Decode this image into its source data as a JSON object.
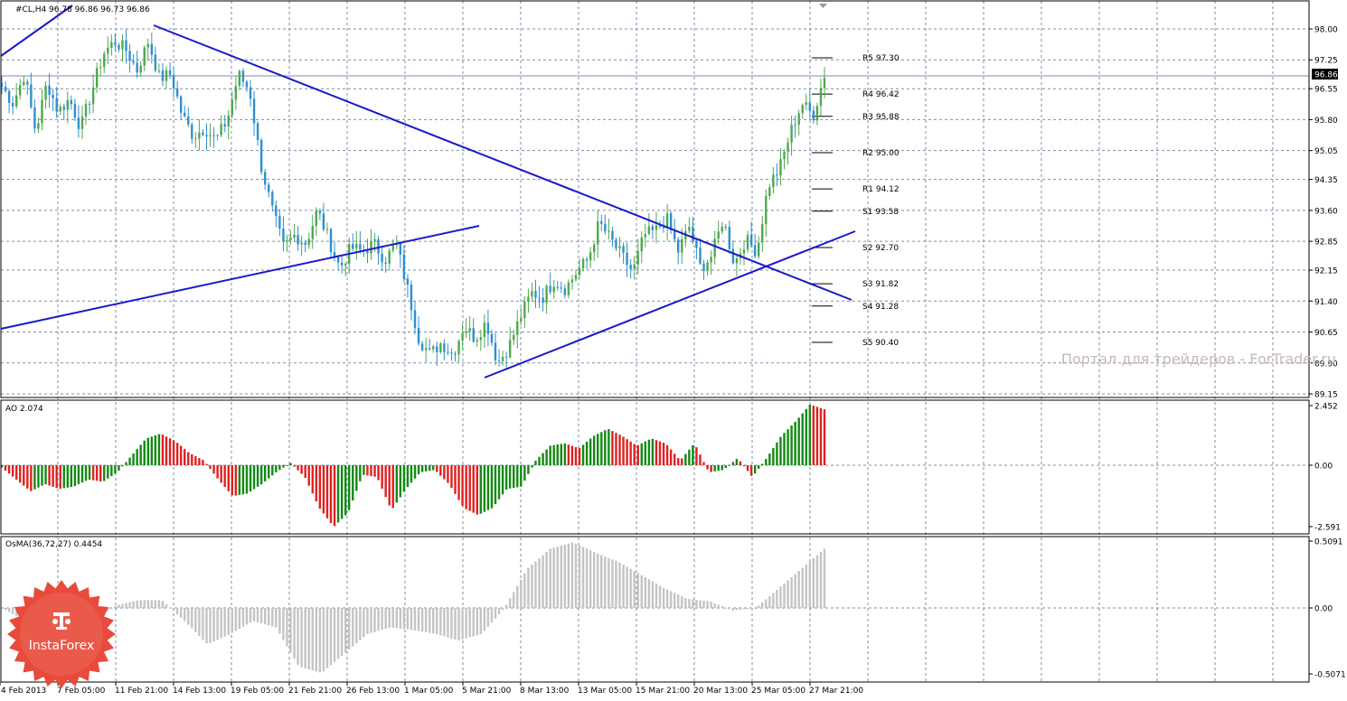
{
  "colors": {
    "background": "#ffffff",
    "grid": "#7f8ea8",
    "frame": "#000000",
    "bull_candle": "#4fa84f",
    "bear_candle": "#2f8fcf",
    "trendline": "#1a1ac8",
    "ao_up": "#128a12",
    "ao_down": "#e02020",
    "osma": "#c4c4c4",
    "pivot_level": "#000000",
    "watermark": "#c9b8b8",
    "logo": "#e84a3c"
  },
  "price_panel": {
    "header": "#CL,H4  96.78 96.86 96.73 96.86",
    "current_price_label": "96.86",
    "current_price": 96.86,
    "y_ticks": [
      "98.00",
      "97.25",
      "96.55",
      "95.80",
      "95.05",
      "94.35",
      "93.60",
      "92.85",
      "92.15",
      "91.40",
      "90.65",
      "89.90",
      "89.15"
    ],
    "pivots": [
      {
        "label": "R5 97.30",
        "value": 97.3
      },
      {
        "label": "R4 96.42",
        "value": 96.42
      },
      {
        "label": "R3 95.88",
        "value": 95.88
      },
      {
        "label": "R2 95.00",
        "value": 95.0
      },
      {
        "label": "R1 94.12",
        "value": 94.12
      },
      {
        "label": "S1 93.58",
        "value": 93.58
      },
      {
        "label": "S2 92.70",
        "value": 92.7
      },
      {
        "label": "S3 91.82",
        "value": 91.82
      },
      {
        "label": "S4 91.28",
        "value": 91.28
      },
      {
        "label": "S5 90.40",
        "value": 90.4
      }
    ],
    "watermark": "Портал для трейдеров - ForTrader.ru"
  },
  "ao_panel": {
    "header": "AO 2.074",
    "y_ticks": [
      "2.452",
      "0.00",
      "-2.591"
    ]
  },
  "osma_panel": {
    "header": "OsMA(36,72,27) 0.4454",
    "y_ticks": [
      "0.5091",
      "0.00",
      "-0.5071"
    ]
  },
  "x_ticks": [
    "4 Feb 2013",
    "7 Feb 05:00",
    "11 Feb 21:00",
    "14 Feb 13:00",
    "19 Feb 05:00",
    "21 Feb 21:00",
    "26 Feb 13:00",
    "1 Mar 05:00",
    "5 Mar 21:00",
    "8 Mar 13:00",
    "13 Mar 05:00",
    "15 Mar 21:00",
    "20 Mar 13:00",
    "25 Mar 05:00",
    "27 Mar 21:00"
  ],
  "logo": {
    "text": "InstaForex"
  },
  "chart_data": [
    {
      "type": "candlestick",
      "title": "#CL,H4",
      "ylim": [
        89.15,
        98.3
      ],
      "close_path": [
        96.6,
        96.2,
        96.9,
        95.5,
        96.7,
        96.0,
        96.3,
        95.6,
        96.5,
        97.4,
        97.7,
        97.5,
        97.0,
        97.7,
        96.8,
        96.9,
        95.9,
        95.4,
        95.6,
        95.3,
        95.8,
        96.9,
        96.5,
        94.7,
        93.6,
        92.7,
        93.0,
        92.8,
        93.6,
        92.9,
        92.2,
        92.7,
        92.6,
        92.8,
        92.4,
        92.8,
        91.7,
        90.5,
        90.1,
        90.4,
        90.1,
        90.8,
        90.5,
        90.9,
        89.9,
        90.3,
        91.0,
        91.6,
        91.5,
        91.9,
        91.7,
        92.1,
        92.4,
        93.3,
        92.9,
        92.5,
        92.1,
        93.0,
        93.1,
        93.4,
        92.6,
        93.2,
        92.2,
        92.5,
        93.4,
        92.3,
        92.9,
        92.6,
        94.2,
        94.6,
        95.5,
        96.2,
        95.9,
        96.9
      ]
    },
    {
      "type": "bar",
      "title": "AO",
      "ylim": [
        -2.591,
        2.452
      ],
      "ao_path": [
        -0.1,
        -0.6,
        -1.1,
        -0.8,
        -1.0,
        -0.9,
        -0.6,
        -0.7,
        -0.3,
        0.4,
        1.1,
        1.3,
        1.0,
        0.5,
        0.2,
        -0.6,
        -1.3,
        -1.2,
        -0.8,
        -0.3,
        0.1,
        -0.5,
        -1.8,
        -2.6,
        -2.0,
        -0.4,
        -0.5,
        -1.9,
        -1.0,
        -0.3,
        -0.2,
        -0.8,
        -1.8,
        -2.1,
        -1.8,
        -1.0,
        -0.9,
        0.2,
        0.8,
        0.9,
        0.7,
        1.2,
        1.5,
        1.2,
        0.8,
        1.1,
        0.9,
        0.2,
        0.9,
        -0.3,
        -0.2,
        0.3,
        -0.5,
        0.3,
        1.2,
        1.8,
        2.5,
        2.3
      ]
    },
    {
      "type": "bar",
      "title": "OsMA(36,72,27)",
      "ylim": [
        -0.5071,
        0.5091
      ],
      "osma_path": [
        0.0,
        -0.1,
        -0.12,
        -0.2,
        -0.1,
        0.02,
        0.06,
        0.06,
        -0.1,
        -0.28,
        -0.2,
        -0.1,
        -0.15,
        -0.45,
        -0.5,
        -0.35,
        -0.2,
        -0.15,
        -0.17,
        -0.2,
        -0.25,
        -0.2,
        0.0,
        0.3,
        0.45,
        0.5,
        0.42,
        0.35,
        0.25,
        0.15,
        0.07,
        0.05,
        -0.02,
        0.0,
        0.15,
        0.3,
        0.45
      ]
    }
  ]
}
